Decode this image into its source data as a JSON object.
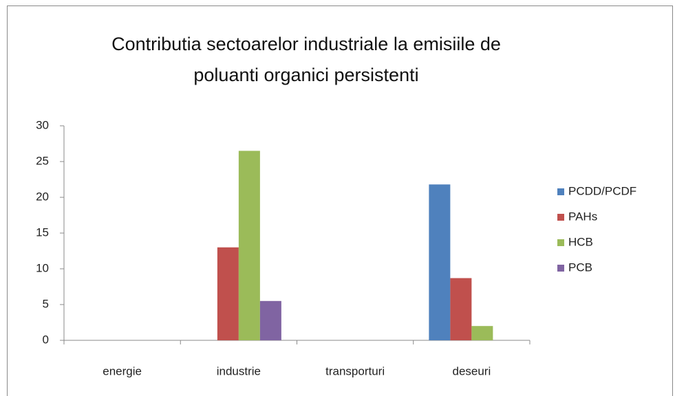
{
  "chart_data": {
    "type": "bar",
    "title": "Contributia sectoarelor industriale la emisiile de poluanti organici persistenti",
    "categories": [
      "energie",
      "industrie",
      "transporturi",
      "deseuri"
    ],
    "series": [
      {
        "name": "PCDD/PCDF",
        "color": "#4f81bd",
        "values": [
          0,
          0,
          0,
          21.8
        ]
      },
      {
        "name": "PAHs",
        "color": "#c0504d",
        "values": [
          0,
          13,
          0,
          8.7
        ]
      },
      {
        "name": "HCB",
        "color": "#9bbb59",
        "values": [
          0,
          26.5,
          0,
          2
        ]
      },
      {
        "name": "PCB",
        "color": "#8064a2",
        "values": [
          0,
          5.5,
          0,
          0
        ]
      }
    ],
    "ylim": [
      0,
      30
    ],
    "yticks": [
      0,
      5,
      10,
      15,
      20,
      25,
      30
    ],
    "grid": false,
    "legend": "right"
  }
}
